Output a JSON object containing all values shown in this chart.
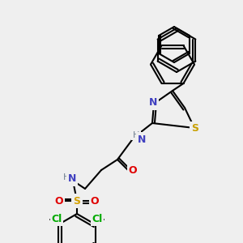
{
  "bg_color": "#efefef",
  "bond_color": "#000000",
  "atom_colors": {
    "N": "#4040c0",
    "S_thio": "#c8a000",
    "S_sulf": "#e00000",
    "O": "#e00000",
    "Cl": "#00aa00",
    "H": "#708090",
    "C": "#000000"
  },
  "bond_width": 1.5,
  "font_size": 9
}
